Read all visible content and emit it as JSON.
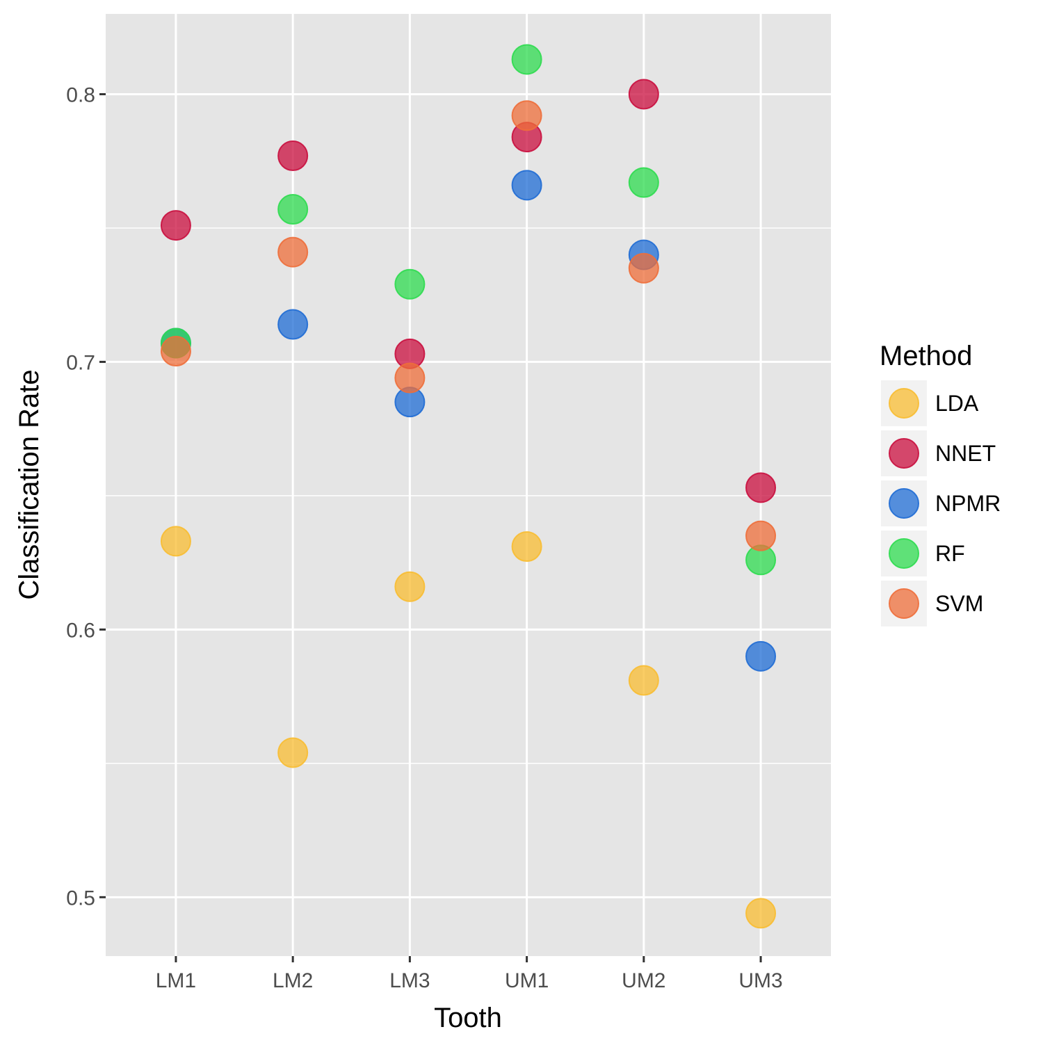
{
  "chart_data": {
    "type": "scatter",
    "title": "",
    "xlabel": "Tooth",
    "ylabel": "Classification Rate",
    "categories": [
      "LM1",
      "LM2",
      "LM3",
      "UM1",
      "UM2",
      "UM3"
    ],
    "ylim": [
      0.478,
      0.83
    ],
    "yticks": [
      0.5,
      0.6,
      0.7,
      0.8
    ],
    "ytick_labels": [
      "0.5",
      "0.6",
      "0.7",
      "0.8"
    ],
    "grid": true,
    "legend": {
      "title": "Method",
      "position": "right"
    },
    "series": [
      {
        "name": "LDA",
        "color": "#F8BC31",
        "values": [
          0.633,
          0.554,
          0.616,
          0.631,
          0.581,
          0.494
        ]
      },
      {
        "name": "NNET",
        "color": "#C90E3E",
        "values": [
          0.751,
          0.777,
          0.703,
          0.784,
          0.8,
          0.653
        ]
      },
      {
        "name": "NPMR",
        "color": "#1F6CD4",
        "values": [
          0.707,
          0.714,
          0.685,
          0.766,
          0.74,
          0.59
        ]
      },
      {
        "name": "RF",
        "color": "#2EDB4F",
        "values": [
          0.707,
          0.757,
          0.729,
          0.813,
          0.767,
          0.626
        ]
      },
      {
        "name": "SVM",
        "color": "#EE6E3A",
        "values": [
          0.704,
          0.741,
          0.694,
          0.792,
          0.735,
          0.635
        ]
      }
    ]
  }
}
